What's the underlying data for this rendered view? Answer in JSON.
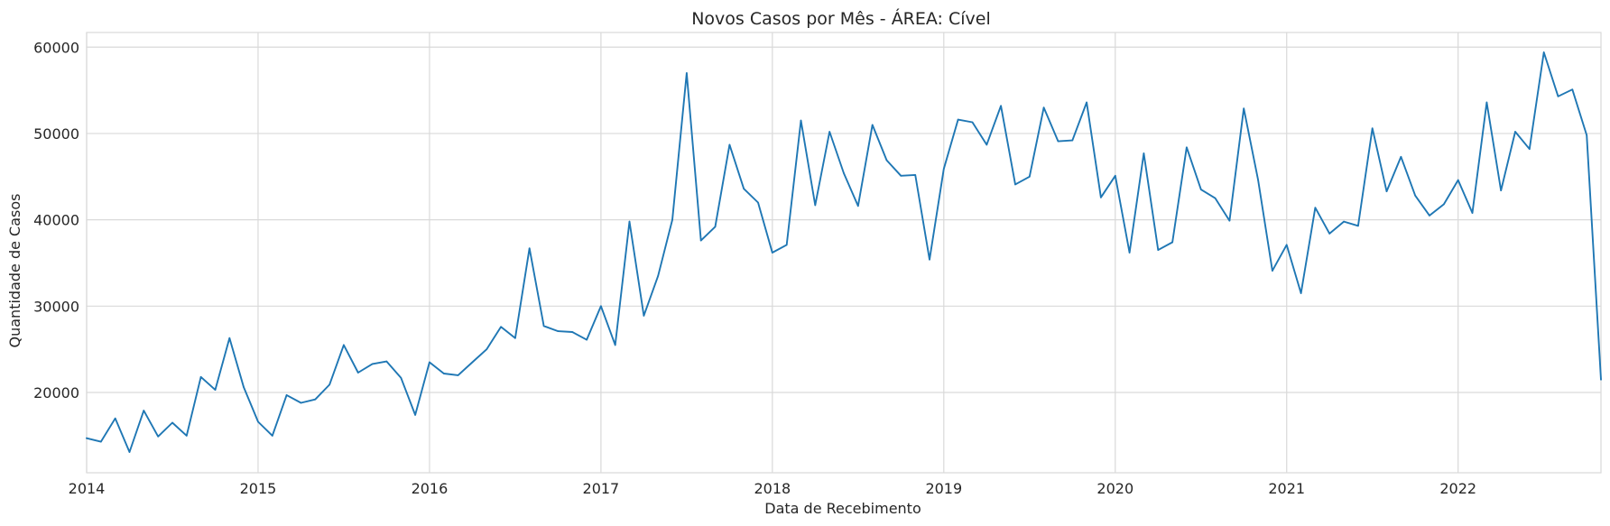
{
  "chart_data": {
    "type": "line",
    "title": "Novos Casos por Mês - ÁREA: Cível",
    "xlabel": "Data de Recebimento",
    "ylabel": "Quantidade de Casos",
    "xlim": [
      "2014-01",
      "2022-11"
    ],
    "ylim": [
      10700,
      61700
    ],
    "x_ticks": [
      "2014",
      "2015",
      "2016",
      "2017",
      "2018",
      "2019",
      "2020",
      "2021",
      "2022"
    ],
    "y_ticks": [
      "20000",
      "30000",
      "40000",
      "50000",
      "60000"
    ],
    "grid": true,
    "legend": "none",
    "color": "#1f77b4",
    "series": [
      {
        "x": [
          "2014-01",
          "2014-02",
          "2014-03",
          "2014-04",
          "2014-05",
          "2014-06",
          "2014-07",
          "2014-08",
          "2014-09",
          "2014-10",
          "2014-11",
          "2014-12",
          "2015-01",
          "2015-02",
          "2015-03",
          "2015-04",
          "2015-05",
          "2015-06",
          "2015-07",
          "2015-08",
          "2015-09",
          "2015-10",
          "2015-11",
          "2015-12",
          "2016-01",
          "2016-02",
          "2016-03",
          "2016-04",
          "2016-05",
          "2016-06",
          "2016-07",
          "2016-08",
          "2016-09",
          "2016-10",
          "2016-11",
          "2016-12",
          "2017-01",
          "2017-02",
          "2017-03",
          "2017-04",
          "2017-05",
          "2017-06",
          "2017-07",
          "2017-08",
          "2017-09",
          "2017-10",
          "2017-11",
          "2017-12",
          "2018-01",
          "2018-02",
          "2018-03",
          "2018-04",
          "2018-05",
          "2018-06",
          "2018-07",
          "2018-08",
          "2018-09",
          "2018-10",
          "2018-11",
          "2018-12",
          "2019-01",
          "2019-02",
          "2019-03",
          "2019-04",
          "2019-05",
          "2019-06",
          "2019-07",
          "2019-08",
          "2019-09",
          "2019-10",
          "2019-11",
          "2019-12",
          "2020-01",
          "2020-02",
          "2020-03",
          "2020-04",
          "2020-05",
          "2020-06",
          "2020-07",
          "2020-08",
          "2020-09",
          "2020-10",
          "2020-11",
          "2020-12",
          "2021-01",
          "2021-02",
          "2021-03",
          "2021-04",
          "2021-05",
          "2021-06",
          "2021-07",
          "2021-08",
          "2021-09",
          "2021-10",
          "2021-11",
          "2021-12",
          "2022-01",
          "2022-02",
          "2022-03",
          "2022-04",
          "2022-05",
          "2022-06",
          "2022-07",
          "2022-08",
          "2022-09",
          "2022-10",
          "2022-11"
        ],
        "values": [
          14700,
          14300,
          17000,
          13100,
          17900,
          14900,
          16500,
          15000,
          21800,
          20300,
          26300,
          20600,
          16600,
          15000,
          19700,
          18800,
          19200,
          20900,
          25500,
          22300,
          23300,
          23600,
          21700,
          17400,
          23500,
          22200,
          22000,
          23500,
          25000,
          27600,
          26300,
          36700,
          27700,
          27100,
          27000,
          26100,
          30000,
          25500,
          39800,
          28900,
          33500,
          40000,
          57000,
          37600,
          39200,
          48700,
          43600,
          42000,
          36200,
          37100,
          51500,
          41700,
          50200,
          45400,
          41600,
          51000,
          46900,
          45100,
          45200,
          35400,
          45900,
          51600,
          51300,
          48700,
          53200,
          44100,
          45000,
          53000,
          49100,
          49200,
          53600,
          42600,
          45100,
          36200,
          47700,
          36500,
          37400,
          48400,
          43500,
          42500,
          39900,
          52900,
          44600,
          34100,
          37100,
          31500,
          41400,
          38400,
          39800,
          39300,
          50600,
          43300,
          47300,
          42800,
          40500,
          41800,
          44600,
          40800,
          53600,
          43400,
          50200,
          48200,
          59400,
          54300,
          55100,
          49800,
          21500
        ]
      }
    ]
  }
}
